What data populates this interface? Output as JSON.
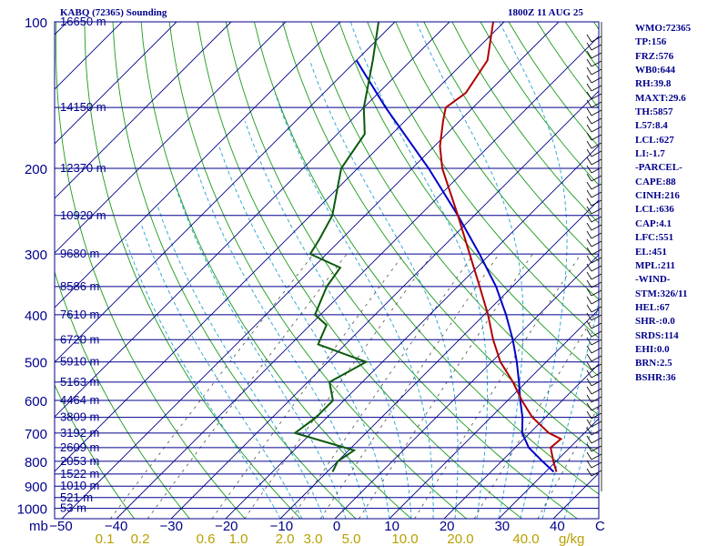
{
  "chart_data": {
    "type": "skew-t",
    "title": "KABQ (72365) Sounding",
    "time": "1800Z 11 AUG 25",
    "pressure_levels": [
      100,
      200,
      300,
      400,
      500,
      600,
      700,
      800,
      900,
      1000
    ],
    "pressure_unit_label": "mb",
    "isobar_heights": [
      {
        "p": 100,
        "h": "16650 m"
      },
      {
        "p": 150,
        "h": "14150 m"
      },
      {
        "p": 200,
        "h": "12370 m"
      },
      {
        "p": 250,
        "h": "10920 m"
      },
      {
        "p": 300,
        "h": "9680 m"
      },
      {
        "p": 350,
        "h": "8586 m"
      },
      {
        "p": 400,
        "h": "7610 m"
      },
      {
        "p": 450,
        "h": "6720 m"
      },
      {
        "p": 500,
        "h": "5910 m"
      },
      {
        "p": 550,
        "h": "5163 m"
      },
      {
        "p": 600,
        "h": "4464 m"
      },
      {
        "p": 650,
        "h": "3809 m"
      },
      {
        "p": 700,
        "h": "3192 m"
      },
      {
        "p": 750,
        "h": "2609 m"
      },
      {
        "p": 800,
        "h": "2053 m"
      },
      {
        "p": 850,
        "h": "1522 m"
      },
      {
        "p": 900,
        "h": "1010 m"
      },
      {
        "p": 950,
        "h": "521 m"
      },
      {
        "p": 1000,
        "h": "53 m"
      }
    ],
    "temperature_ticks": [
      "-50",
      "-40",
      "-30",
      "-20",
      "-10",
      "0",
      "10",
      "20",
      "30",
      "40"
    ],
    "temperature_unit_label": "C",
    "mixing_ratio_ticks": [
      "0.1",
      "0.2",
      "0.6",
      "1.0",
      "2.0",
      "3.0",
      "5.0",
      "10.0",
      "20.0",
      "40.0"
    ],
    "mixing_ratio_unit_label": "g/kg",
    "temperature_profile": [
      {
        "p": 841,
        "t": 32.0
      },
      {
        "p": 800,
        "t": 29.5
      },
      {
        "p": 750,
        "t": 26.5
      },
      {
        "p": 720,
        "t": 26.8
      },
      {
        "p": 700,
        "t": 23.5
      },
      {
        "p": 650,
        "t": 17.6
      },
      {
        "p": 600,
        "t": 12.6
      },
      {
        "p": 550,
        "t": 7.6
      },
      {
        "p": 500,
        "t": 1.6
      },
      {
        "p": 450,
        "t": -3.8
      },
      {
        "p": 400,
        "t": -9.3
      },
      {
        "p": 350,
        "t": -16.0
      },
      {
        "p": 300,
        "t": -23.8
      },
      {
        "p": 250,
        "t": -33.0
      },
      {
        "p": 200,
        "t": -44.5
      },
      {
        "p": 180,
        "t": -49.0
      },
      {
        "p": 160,
        "t": -53.0
      },
      {
        "p": 150,
        "t": -55.0
      },
      {
        "p": 140,
        "t": -54.0
      },
      {
        "p": 120,
        "t": -56.0
      },
      {
        "p": 100,
        "t": -62.0
      }
    ],
    "dewpoint_profile": [
      {
        "p": 841,
        "td": -9.0
      },
      {
        "p": 800,
        "td": -10.0
      },
      {
        "p": 760,
        "td": -9.0
      },
      {
        "p": 700,
        "td": -23.0
      },
      {
        "p": 650,
        "td": -22.0
      },
      {
        "p": 600,
        "td": -22.0
      },
      {
        "p": 550,
        "td": -26.0
      },
      {
        "p": 500,
        "td": -23.0
      },
      {
        "p": 460,
        "td": -35.0
      },
      {
        "p": 420,
        "td": -37.0
      },
      {
        "p": 400,
        "td": -41.0
      },
      {
        "p": 350,
        "td": -44.0
      },
      {
        "p": 320,
        "td": -45.0
      },
      {
        "p": 300,
        "td": -53.0
      },
      {
        "p": 280,
        "td": -54.0
      },
      {
        "p": 250,
        "td": -56.0
      },
      {
        "p": 200,
        "td": -63.0
      },
      {
        "p": 170,
        "td": -65.0
      },
      {
        "p": 150,
        "td": -70.0
      },
      {
        "p": 120,
        "td": -77.0
      },
      {
        "p": 100,
        "td": -83.0
      }
    ],
    "parcel_profile": [
      {
        "p": 841,
        "t": 31.5
      },
      {
        "p": 800,
        "t": 27.5
      },
      {
        "p": 750,
        "t": 22.5
      },
      {
        "p": 700,
        "t": 18.6
      },
      {
        "p": 650,
        "t": 15.8
      },
      {
        "p": 600,
        "t": 12.3
      },
      {
        "p": 550,
        "t": 8.7
      },
      {
        "p": 500,
        "t": 4.6
      },
      {
        "p": 450,
        "t": -0.2
      },
      {
        "p": 400,
        "t": -6.0
      },
      {
        "p": 350,
        "t": -13.0
      },
      {
        "p": 300,
        "t": -22.0
      },
      {
        "p": 250,
        "t": -33.0
      },
      {
        "p": 200,
        "t": -47.0
      },
      {
        "p": 150,
        "t": -66.0
      },
      {
        "p": 120,
        "t": -80.0
      }
    ],
    "colors": {
      "isobar": "#00008b",
      "isotherm": "#00008b",
      "dry_adiabat": "#1a9a1a",
      "moist_adiabat": "#1fa2d0",
      "mixing_ratio": "#4d4d4d",
      "temperature": "#b00000",
      "dewpoint": "#0a5a0a",
      "parcel": "#0000c8",
      "text": "#00008b",
      "mixing_ratio_label": "#b8a000",
      "wind": "#000000"
    }
  },
  "stats": [
    "WMO:72365",
    "TP:156",
    "FRZ:576",
    "WB0:644",
    "RH:39.8",
    "MAXT:29.6",
    "TH:5857",
    "L57:8.4",
    "LCL:627",
    "LI:-1.7",
    "-PARCEL-",
    "CAPE:88",
    "CINH:216",
    "LCL:636",
    "CAP:4.1",
    "LFC:551",
    "EL:451",
    "MPL:211",
    "-WIND-",
    "STM:326/11",
    "HEL:67",
    "SHR-:0.0",
    "SRDS:114",
    "EHI:0.0",
    "BRN:2.5",
    "BSHR:36"
  ]
}
